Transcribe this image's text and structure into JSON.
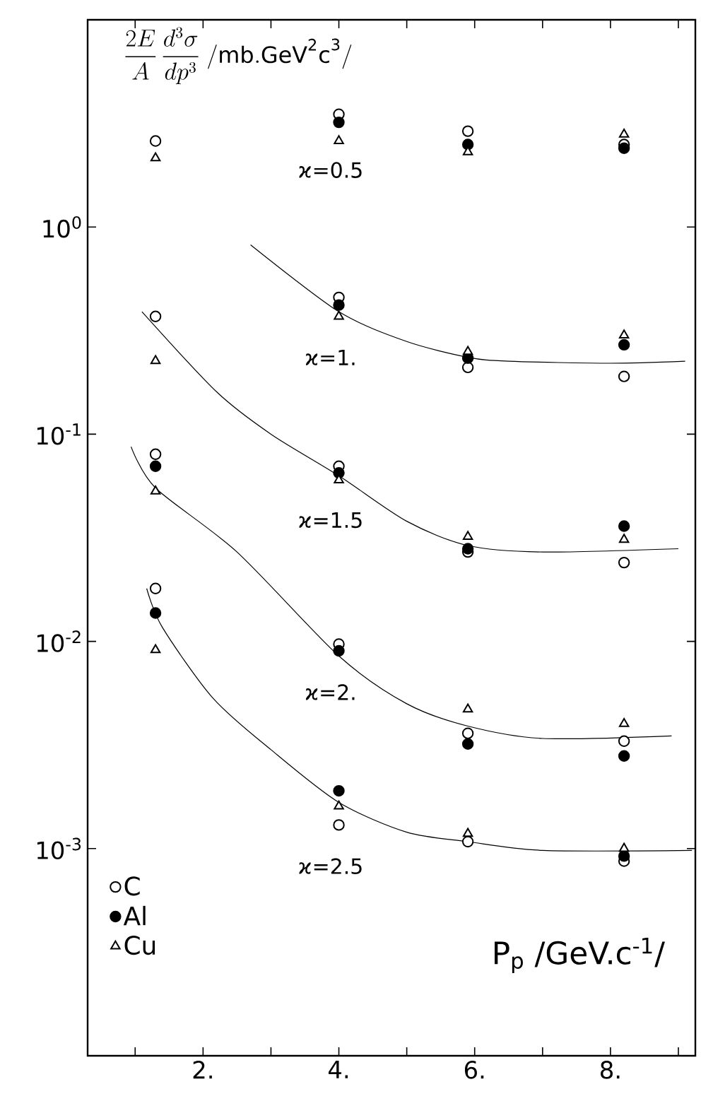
{
  "chart_data": {
    "type": "scatter",
    "ylabel": "\\frac{2E}{A}\\,\\frac{d^{3}\\sigma}{dp^{3}}\\;/\\mathrm{mb.GeV^{2}c^{3}}/",
    "xlabel": "P$_{p}$ /GeV.c$^{-1}$/",
    "log": "y",
    "legend": "bottom left",
    "grid": false,
    "xlim": [
      0.3,
      9.25
    ],
    "ylim": [
      0.0001,
      10
    ],
    "xticks": [
      {
        "value": 1,
        "label": null
      },
      {
        "value": 2,
        "label": "2."
      },
      {
        "value": 3,
        "label": null
      },
      {
        "value": 4,
        "label": "4."
      },
      {
        "value": 5,
        "label": null
      },
      {
        "value": 6,
        "label": "6."
      },
      {
        "value": 7,
        "label": null
      },
      {
        "value": 8,
        "label": "8."
      },
      {
        "value": 9,
        "label": null
      }
    ],
    "yticks": [
      {
        "value": 1,
        "label": "10$^{0}$"
      },
      {
        "value": 0.1,
        "label": "10$^{-1}$"
      },
      {
        "value": 0.01,
        "label": "10$^{-2}$"
      },
      {
        "value": 0.001,
        "label": "10$^{-3}$"
      }
    ],
    "series": [
      {
        "name": "C",
        "color": "#000000",
        "marker": "circle",
        "x": [
          1.3,
          1.3,
          1.3,
          1.3,
          4.0,
          4.0,
          4.0,
          4.0,
          4.0,
          5.9,
          5.9,
          5.9,
          5.9,
          5.9,
          8.2,
          8.2,
          8.2,
          8.2,
          8.2
        ],
        "values": [
          2.6,
          0.37,
          0.08,
          0.018,
          3.5,
          0.457,
          0.07,
          0.0097,
          0.0013,
          2.9,
          0.21,
          0.027,
          0.0036,
          0.00108,
          2.5,
          0.19,
          0.024,
          0.0033,
          0.00087
        ]
      },
      {
        "name": "Al",
        "color": "#000000",
        "marker": "circle",
        "x": [
          1.3,
          1.3,
          4.0,
          4.0,
          4.0,
          4.0,
          4.0,
          5.9,
          5.9,
          5.9,
          5.9,
          8.2,
          8.2,
          8.2,
          8.2,
          8.2
        ],
        "values": [
          0.07,
          0.0137,
          3.2,
          0.42,
          0.065,
          0.009,
          0.0019,
          2.5,
          0.233,
          0.028,
          0.0032,
          2.4,
          0.27,
          0.036,
          0.0028,
          0.00092
        ]
      },
      {
        "name": "Cu",
        "color": "#000000",
        "marker": "triangle",
        "x": [
          1.3,
          1.3,
          1.3,
          1.3,
          4.0,
          4.0,
          4.0,
          4.0,
          5.9,
          5.9,
          5.9,
          5.9,
          5.9,
          8.2,
          8.2,
          8.2,
          8.2,
          8.2
        ],
        "values": [
          2.15,
          0.226,
          0.053,
          0.0091,
          2.6,
          0.37,
          0.06,
          0.0016,
          2.3,
          0.25,
          0.032,
          0.0047,
          0.00118,
          2.8,
          0.3,
          0.031,
          0.004,
          0.001
        ]
      },
      {
        "type": "line",
        "color": "#000000",
        "marker": "none",
        "x": [
          2.7,
          4.0,
          5.0,
          5.9,
          6.5,
          8.0,
          9.1
        ],
        "values": [
          0.82,
          0.39,
          0.28,
          0.235,
          0.225,
          0.22,
          0.225
        ]
      },
      {
        "type": "line",
        "color": "#000000",
        "marker": "none",
        "x": [
          1.1,
          2.2,
          3.0,
          4.0,
          5.0,
          5.9,
          7.0,
          9.0
        ],
        "values": [
          0.39,
          0.16,
          0.1,
          0.063,
          0.038,
          0.029,
          0.027,
          0.028
        ]
      },
      {
        "type": "line",
        "color": "#000000",
        "marker": "none",
        "x": [
          0.94,
          1.3,
          2.5,
          4.0,
          5.0,
          5.9,
          7.0,
          8.9
        ],
        "values": [
          0.087,
          0.055,
          0.027,
          0.0085,
          0.005,
          0.0039,
          0.0034,
          0.0035
        ]
      },
      {
        "type": "line",
        "color": "#000000",
        "marker": "none",
        "x": [
          1.17,
          1.4,
          2.15,
          3.0,
          4.0,
          5.0,
          5.9,
          7.0,
          9.2
        ],
        "values": [
          0.018,
          0.0117,
          0.0053,
          0.003,
          0.00167,
          0.0012,
          0.00108,
          0.00098,
          0.00098
        ]
      }
    ],
    "annotations": [
      "ϰ=0.5",
      "ϰ=1.",
      "ϰ=1.5",
      "ϰ=2.",
      "ϰ=2.5"
    ]
  }
}
